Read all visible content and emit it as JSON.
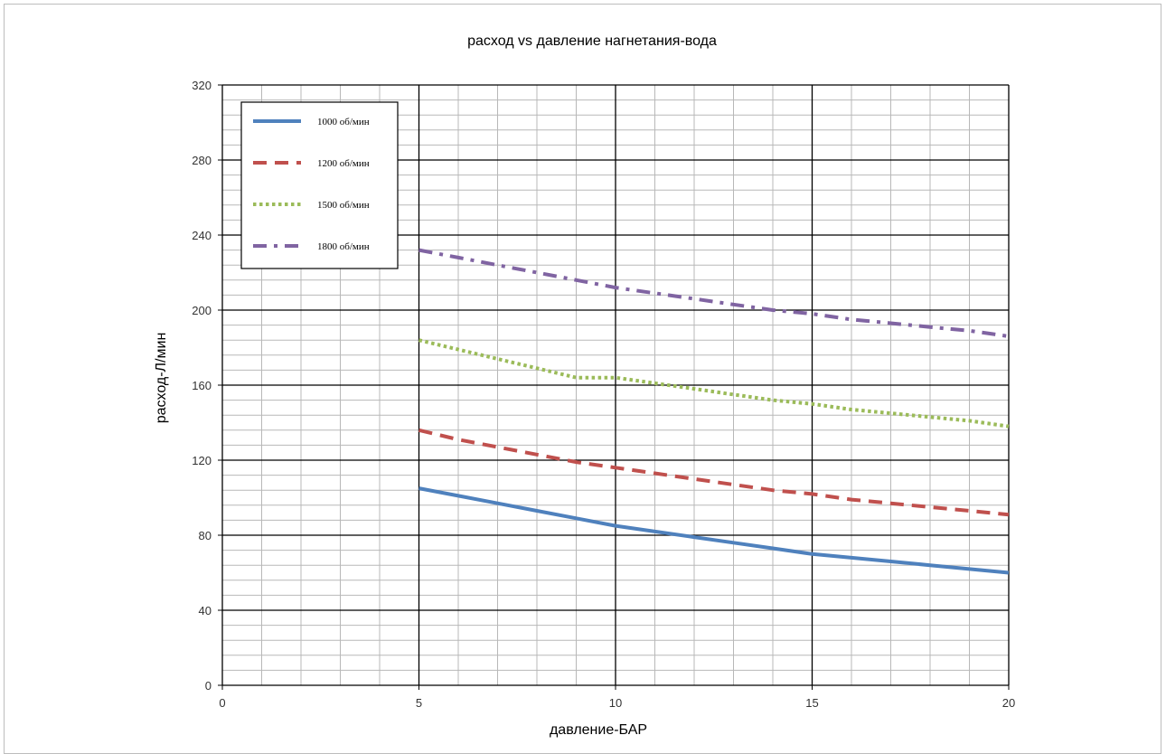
{
  "chart_data": {
    "type": "line",
    "title": "расход vs давление нагнетания-вода",
    "xlabel": "давление-БАР",
    "ylabel": "расход-Л/мин",
    "xlim": [
      0,
      20
    ],
    "ylim": [
      0,
      320
    ],
    "x_ticks": [
      0,
      5,
      10,
      15,
      20
    ],
    "y_ticks": [
      0,
      40,
      80,
      120,
      160,
      200,
      240,
      280,
      320
    ],
    "grid": "major and minor",
    "legend_position": "top-left",
    "series": [
      {
        "name": "1000 об/мин",
        "color": "#4f81bd",
        "style": "solid",
        "x": [
          5,
          6,
          7,
          8,
          9,
          10,
          11,
          12,
          13,
          14,
          15,
          16,
          17,
          18,
          19,
          20
        ],
        "y": [
          105,
          101,
          97,
          93,
          89,
          85,
          82,
          79,
          76,
          73,
          70,
          68,
          66,
          64,
          62,
          60
        ]
      },
      {
        "name": "1200 об/мин",
        "color": "#c0504d",
        "style": "dash",
        "x": [
          5,
          6,
          7,
          8,
          9,
          10,
          11,
          12,
          13,
          14,
          15,
          16,
          17,
          18,
          19,
          20
        ],
        "y": [
          136,
          131,
          127,
          123,
          119,
          116,
          113,
          110,
          107,
          104,
          102,
          99,
          97,
          95,
          93,
          91
        ]
      },
      {
        "name": "1500 об/мин",
        "color": "#9bbb59",
        "style": "dot",
        "x": [
          5,
          6,
          7,
          8,
          9,
          10,
          11,
          12,
          13,
          14,
          15,
          16,
          17,
          18,
          19,
          20
        ],
        "y": [
          184,
          179,
          174,
          169,
          164,
          164,
          161,
          158,
          155,
          152,
          150,
          147,
          145,
          143,
          141,
          138
        ]
      },
      {
        "name": "1800 об/мин",
        "color": "#8064a2",
        "style": "dashdot",
        "x": [
          5,
          6,
          7,
          8,
          9,
          10,
          11,
          12,
          13,
          14,
          15,
          16,
          17,
          18,
          19,
          20
        ],
        "y": [
          232,
          228,
          224,
          220,
          216,
          212,
          209,
          206,
          203,
          200,
          198,
          195,
          193,
          191,
          189,
          186
        ]
      }
    ]
  }
}
